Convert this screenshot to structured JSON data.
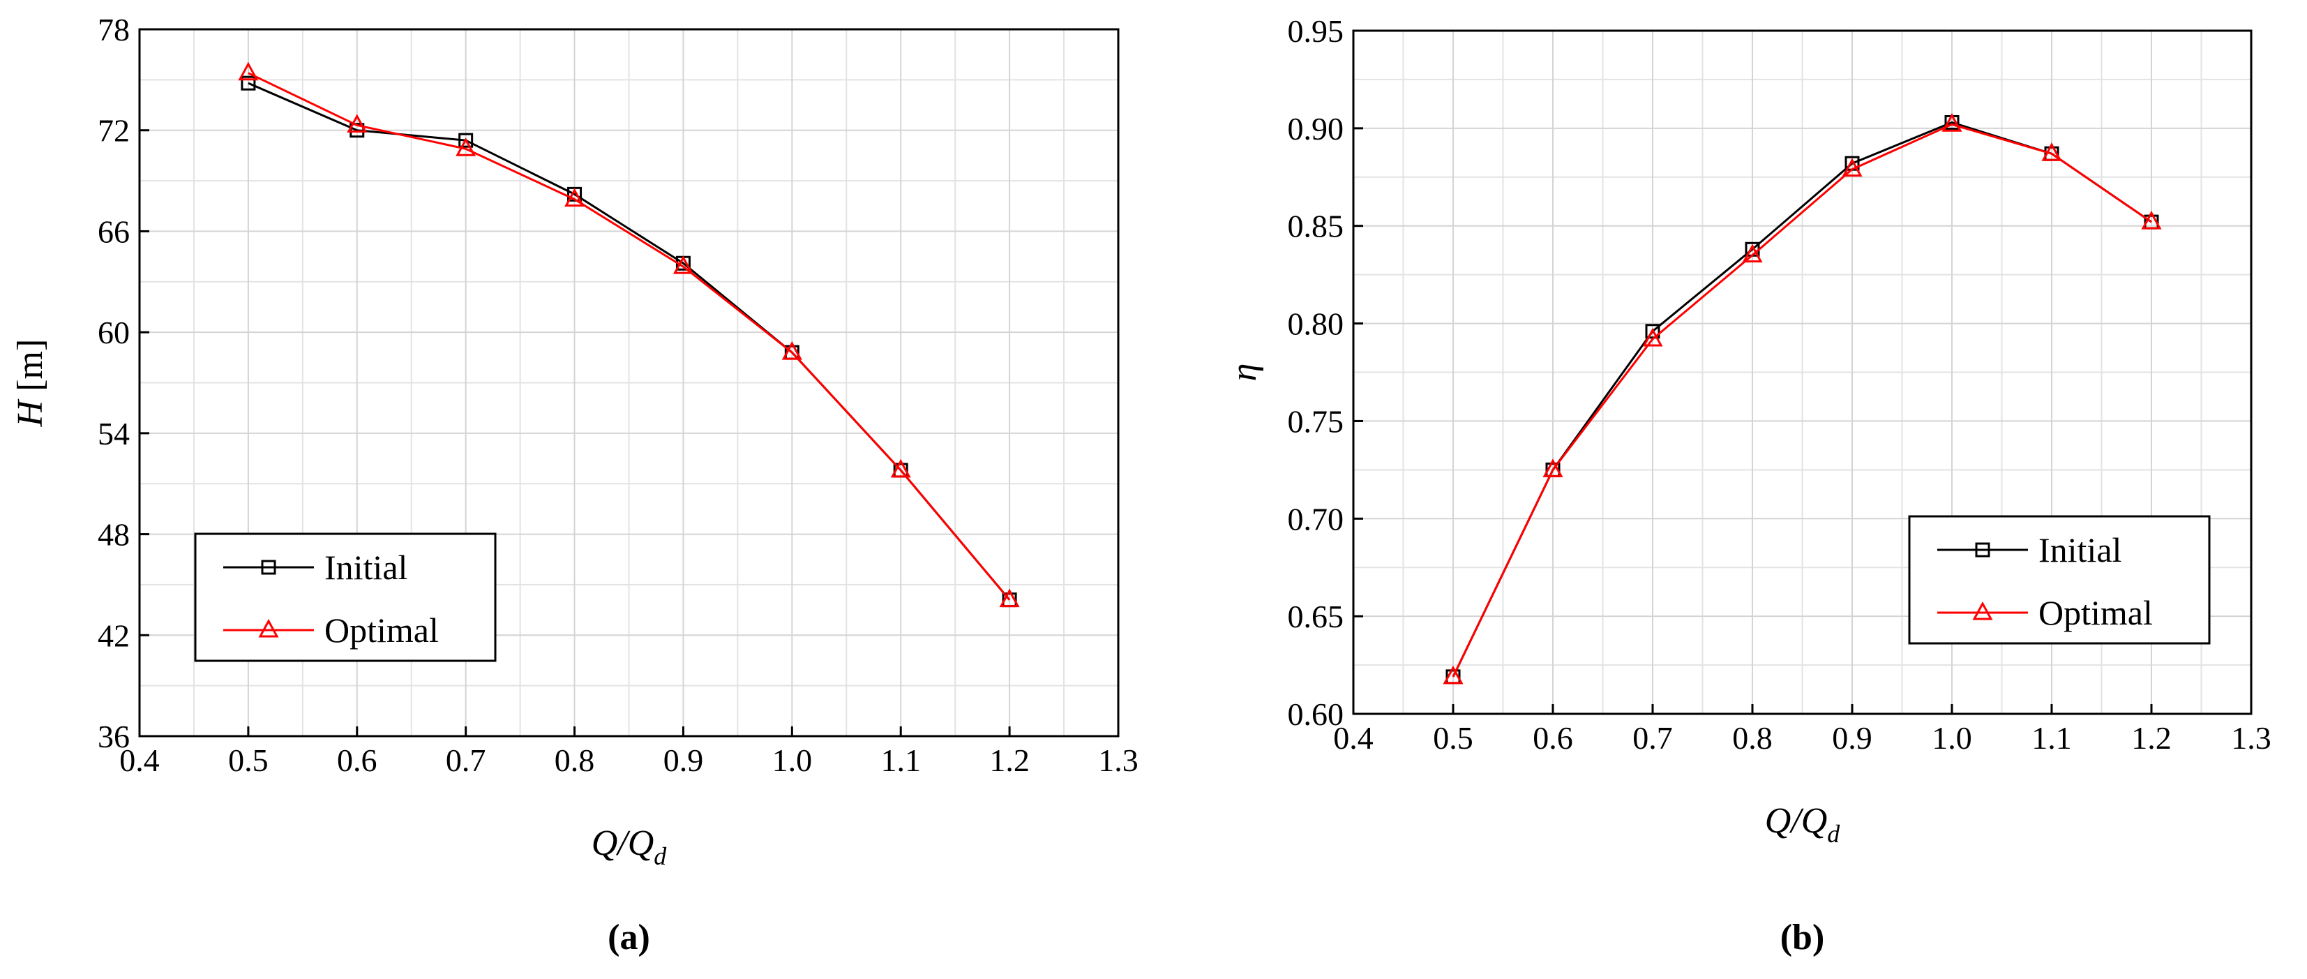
{
  "chart_data": [
    {
      "type": "line",
      "panel": "(a)",
      "ylabel": [
        "H",
        " [m]"
      ],
      "xlabel": [
        "Q/Q",
        "d"
      ],
      "x": [
        0.5,
        0.6,
        0.7,
        0.8,
        0.9,
        1.0,
        1.1,
        1.2
      ],
      "series": [
        {
          "name": "Initial",
          "color": "#000000",
          "marker": "square",
          "values": [
            74.8,
            72.0,
            71.4,
            68.2,
            64.1,
            58.8,
            51.8,
            44.1
          ]
        },
        {
          "name": "Optimal",
          "color": "#ff0000",
          "marker": "triangle",
          "values": [
            75.4,
            72.3,
            70.9,
            67.9,
            63.9,
            58.8,
            51.8,
            44.1
          ]
        }
      ],
      "xlim": [
        0.4,
        1.3
      ],
      "xticks": [
        0.4,
        0.5,
        0.6,
        0.7,
        0.8,
        0.9,
        {
          "value": 1,
          "label": "1.0"
        },
        1.1,
        1.2,
        1.3
      ],
      "ylim": [
        36,
        78
      ],
      "yticks": [
        36,
        42,
        48,
        54,
        60,
        66,
        72,
        78
      ],
      "grid": true,
      "minor_grid": true,
      "legend": "lower left"
    },
    {
      "type": "line",
      "panel": "(b)",
      "ylabel": [
        "η"
      ],
      "xlabel": [
        "Q/Q",
        "d"
      ],
      "x": [
        0.5,
        0.6,
        0.7,
        0.8,
        0.9,
        1.0,
        1.1,
        1.2
      ],
      "series": [
        {
          "name": "Initial",
          "color": "#000000",
          "marker": "square",
          "values": [
            0.619,
            0.725,
            0.796,
            0.838,
            0.882,
            0.903,
            0.887,
            0.852
          ]
        },
        {
          "name": "Optimal",
          "color": "#ff0000",
          "marker": "triangle",
          "values": [
            0.619,
            0.725,
            0.792,
            0.835,
            0.879,
            0.902,
            0.887,
            0.852
          ]
        }
      ],
      "xlim": [
        0.4,
        1.3
      ],
      "xticks": [
        0.4,
        0.5,
        0.6,
        0.7,
        0.8,
        0.9,
        {
          "value": 1,
          "label": "1.0"
        },
        1.1,
        1.2,
        1.3
      ],
      "ylim": [
        0.6,
        0.95
      ],
      "yticks": [
        {
          "value": 0.6,
          "label": "0.60"
        },
        0.65,
        {
          "value": 0.7,
          "label": "0.70"
        },
        0.75,
        {
          "value": 0.8,
          "label": "0.80"
        },
        0.85,
        {
          "value": 0.9,
          "label": "0.90"
        },
        0.95
      ],
      "grid": true,
      "minor_grid": true,
      "legend": "lower right"
    }
  ]
}
